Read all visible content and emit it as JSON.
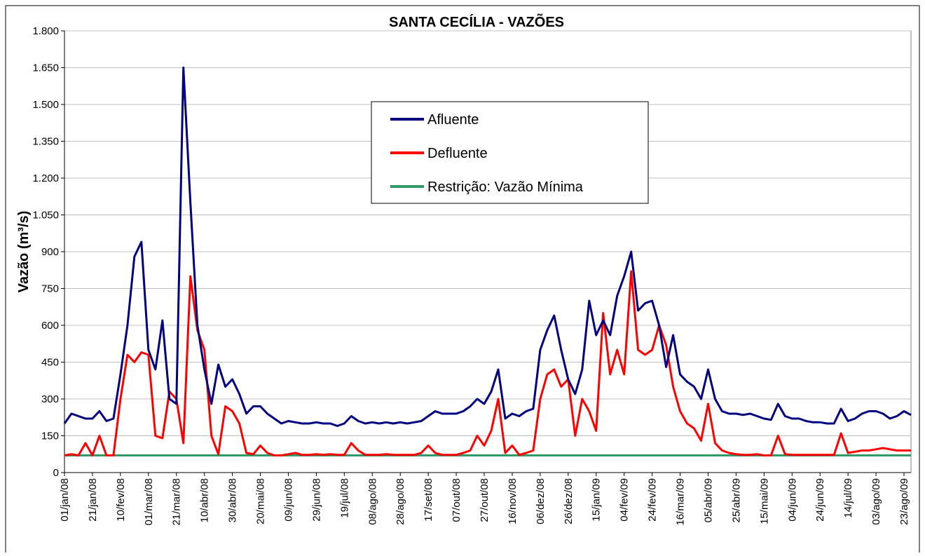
{
  "chart_data": {
    "type": "line",
    "title": "SANTA CECÍLIA - VAZÕES",
    "y_label": "Vazão (m³/s)",
    "categories": [
      "01/jan/08",
      null,
      null,
      null,
      "21/jan/08",
      null,
      null,
      null,
      "10/fev/08",
      null,
      null,
      null,
      "01/mar/08",
      null,
      null,
      null,
      "21/mar/08",
      null,
      null,
      null,
      "10/abr/08",
      null,
      null,
      null,
      "30/abr/08",
      null,
      null,
      null,
      "20/mai/08",
      null,
      null,
      null,
      "09/jun/08",
      null,
      null,
      null,
      "29/jun/08",
      null,
      null,
      null,
      "19/jul/08",
      null,
      null,
      null,
      "08/ago/08",
      null,
      null,
      null,
      "28/ago/08",
      null,
      null,
      null,
      "17/set/08",
      null,
      null,
      null,
      "07/out/08",
      null,
      null,
      null,
      "27/out/08",
      null,
      null,
      null,
      "16/nov/08",
      null,
      null,
      null,
      "06/dez/08",
      null,
      null,
      null,
      "26/dez/08",
      null,
      null,
      null,
      "15/jan/09",
      null,
      null,
      null,
      "04/fev/09",
      null,
      null,
      null,
      "24/fev/09",
      null,
      null,
      null,
      "16/mar/09",
      null,
      null,
      null,
      "05/abr/09",
      null,
      null,
      null,
      "25/abr/09",
      null,
      null,
      null,
      "15/mai/09",
      null,
      null,
      null,
      "04/jun/09",
      null,
      null,
      null,
      "24/jun/09",
      null,
      null,
      null,
      "14/jul/09",
      null,
      null,
      null,
      "03/ago/09",
      null,
      null,
      null,
      "23/ago/09",
      null
    ],
    "series": [
      {
        "name": "Afluente",
        "color": "#000080",
        "values": [
          200,
          240,
          230,
          220,
          220,
          250,
          210,
          220,
          400,
          600,
          880,
          940,
          500,
          420,
          620,
          300,
          280,
          1650,
          1100,
          600,
          420,
          280,
          440,
          350,
          380,
          320,
          240,
          270,
          270,
          240,
          220,
          200,
          210,
          205,
          200,
          200,
          205,
          200,
          200,
          190,
          200,
          230,
          210,
          200,
          205,
          200,
          205,
          200,
          205,
          200,
          205,
          210,
          230,
          250,
          240,
          240,
          240,
          250,
          270,
          300,
          280,
          330,
          420,
          220,
          240,
          230,
          250,
          260,
          500,
          580,
          640,
          500,
          380,
          320,
          420,
          700,
          560,
          620,
          560,
          720,
          800,
          900,
          660,
          690,
          700,
          600,
          430,
          560,
          400,
          370,
          350,
          300,
          420,
          300,
          250,
          240,
          240,
          235,
          240,
          230,
          220,
          215,
          280,
          230,
          220,
          220,
          210,
          205,
          205,
          200,
          200,
          260,
          210,
          220,
          240,
          250,
          250,
          240,
          220,
          230,
          250,
          235
        ]
      },
      {
        "name": "Defluente",
        "color": "#ff0000",
        "values": [
          70,
          75,
          70,
          120,
          70,
          150,
          70,
          70,
          300,
          480,
          450,
          490,
          480,
          150,
          140,
          330,
          300,
          120,
          800,
          580,
          500,
          150,
          75,
          270,
          250,
          200,
          80,
          75,
          110,
          80,
          70,
          70,
          75,
          80,
          72,
          72,
          75,
          72,
          75,
          72,
          72,
          120,
          90,
          72,
          72,
          72,
          75,
          72,
          72,
          72,
          72,
          80,
          110,
          80,
          72,
          72,
          72,
          80,
          90,
          150,
          110,
          170,
          300,
          80,
          110,
          72,
          80,
          90,
          300,
          400,
          420,
          350,
          380,
          150,
          300,
          250,
          170,
          650,
          400,
          500,
          400,
          820,
          500,
          480,
          500,
          600,
          520,
          350,
          250,
          200,
          180,
          130,
          280,
          120,
          90,
          80,
          75,
          72,
          72,
          75,
          70,
          70,
          150,
          75,
          72,
          72,
          72,
          72,
          72,
          72,
          72,
          160,
          80,
          85,
          90,
          90,
          95,
          100,
          95,
          90,
          90,
          90
        ]
      },
      {
        "name": "Restrição: Vazão Mínima",
        "color": "#339966",
        "values": [
          70,
          70,
          70,
          70,
          70,
          70,
          70,
          70,
          70,
          70,
          70,
          70,
          70,
          70,
          70,
          70,
          70,
          70,
          70,
          70,
          70,
          70,
          70,
          70,
          70,
          70,
          70,
          70,
          70,
          70,
          70,
          70,
          70,
          70,
          70,
          70,
          70,
          70,
          70,
          70,
          70,
          70,
          70,
          70,
          70,
          70,
          70,
          70,
          70,
          70,
          70,
          70,
          70,
          70,
          70,
          70,
          70,
          70,
          70,
          70,
          70,
          70,
          70,
          70,
          70,
          70,
          70,
          70,
          70,
          70,
          70,
          70,
          70,
          70,
          70,
          70,
          70,
          70,
          70,
          70,
          70,
          70,
          70,
          70,
          70,
          70,
          70,
          70,
          70,
          70,
          70,
          70,
          70,
          70,
          70,
          70,
          70,
          70,
          70,
          70,
          70,
          70,
          70,
          70,
          70,
          70,
          70,
          70,
          70,
          70,
          70,
          70,
          70,
          70,
          70,
          70,
          70,
          70,
          70,
          70,
          70,
          70
        ]
      }
    ],
    "ylim": [
      0,
      1800
    ],
    "yticks": [
      0,
      150,
      300,
      450,
      600,
      750,
      900,
      {
        "value": 1050,
        "label": "1.050"
      },
      {
        "value": 1200,
        "label": "1.200"
      },
      {
        "value": 1350,
        "label": "1.350"
      },
      {
        "value": 1500,
        "label": "1.500"
      },
      {
        "value": 1650,
        "label": "1.650"
      },
      {
        "value": 1800,
        "label": "1.800"
      }
    ],
    "grid": true
  }
}
